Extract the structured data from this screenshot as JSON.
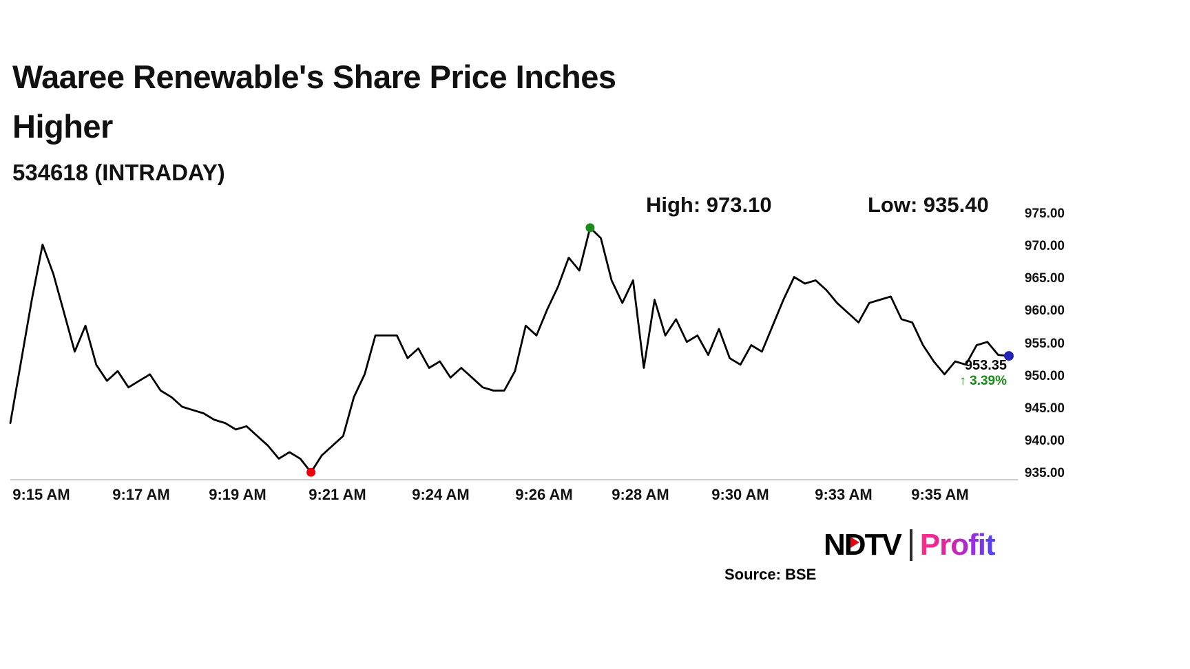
{
  "header": {
    "title_line1": "Waaree Renewable's Share Price Inches",
    "title_line2": "Higher",
    "subtitle": "534618 (INTRADAY)"
  },
  "stats": {
    "high_label": "High: 973.10",
    "low_label": "Low: 935.40"
  },
  "chart_data": {
    "type": "line",
    "title": "Waaree Renewable's Share Price Inches Higher",
    "series_name": "534618 (INTRADAY)",
    "high": 973.1,
    "low": 935.4,
    "last_price": "953.35",
    "change_text": "↑ 3.39%",
    "ylim": [
      935,
      975
    ],
    "y_ticks": [
      "975.00",
      "970.00",
      "965.00",
      "960.00",
      "955.00",
      "950.00",
      "945.00",
      "940.00",
      "935.00"
    ],
    "x_ticks": [
      "9:15 AM",
      "9:17 AM",
      "9:19 AM",
      "9:21 AM",
      "9:24 AM",
      "9:26 AM",
      "9:28 AM",
      "9:30 AM",
      "9:33 AM",
      "9:35 AM"
    ],
    "line_color": "#000000",
    "marker_low_color": "#e8000d",
    "marker_high_color": "#1a8a1a",
    "marker_end_color": "#2525b5",
    "low_index": 28,
    "high_index": 54,
    "values": [
      943.0,
      952.5,
      962.0,
      970.5,
      966.0,
      960.0,
      954.0,
      958.0,
      952.0,
      949.5,
      951.0,
      948.5,
      949.5,
      950.5,
      948.0,
      947.0,
      945.5,
      945.0,
      944.5,
      943.5,
      943.0,
      942.0,
      942.5,
      941.0,
      939.5,
      937.5,
      938.5,
      937.5,
      935.4,
      938.0,
      939.5,
      941.0,
      947.0,
      950.5,
      956.5,
      956.5,
      956.5,
      953.0,
      954.5,
      951.5,
      952.5,
      950.0,
      951.5,
      950.0,
      948.5,
      948.0,
      948.0,
      951.0,
      958.0,
      956.5,
      960.5,
      964.0,
      968.5,
      966.5,
      973.1,
      971.5,
      965.0,
      961.5,
      965.0,
      951.5,
      962.0,
      956.5,
      959.0,
      955.5,
      956.5,
      953.5,
      957.5,
      953.0,
      952.0,
      955.0,
      954.0,
      958.0,
      962.0,
      965.5,
      964.5,
      965.0,
      963.5,
      961.5,
      960.0,
      958.5,
      961.5,
      962.0,
      962.5,
      959.0,
      958.5,
      955.0,
      952.5,
      950.5,
      952.5,
      952.0,
      955.0,
      955.5,
      953.5,
      953.35
    ]
  },
  "footer": {
    "source": "Source: BSE",
    "logo": {
      "ndtv_n": "N",
      "ndtv_d": "D",
      "ndtv_tv": "TV",
      "separator": "|",
      "profit": "Profit"
    }
  }
}
